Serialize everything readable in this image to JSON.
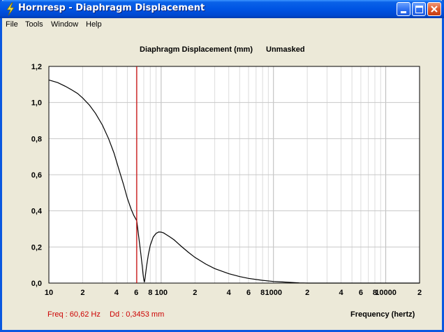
{
  "window": {
    "title": "Hornresp - Diaphragm Displacement",
    "icon": "lightning-icon"
  },
  "menu": {
    "items": [
      "File",
      "Tools",
      "Window",
      "Help"
    ]
  },
  "plot": {
    "title": "Diaphragm Displacement (mm)",
    "subtitle": "Unmasked",
    "x_axis_title": "Frequency (hertz)"
  },
  "readout": {
    "freq": "Freq : 60,62 Hz",
    "dd": "Dd : 0,3453 mm"
  },
  "chart_data": {
    "type": "line",
    "title": "Diaphragm Displacement (mm)",
    "xlabel": "Frequency (hertz)",
    "ylabel": "",
    "x_scale": "log",
    "xlim": [
      10,
      20000
    ],
    "ylim": [
      0,
      1.2
    ],
    "grid": true,
    "y_ticks": [
      "0,0",
      "0,2",
      "0,4",
      "0,6",
      "0,8",
      "1,0",
      "1,2"
    ],
    "x_tick_labels": [
      {
        "value": 10,
        "label": "10"
      },
      {
        "value": 20,
        "label": "2"
      },
      {
        "value": 40,
        "label": "4"
      },
      {
        "value": 60,
        "label": "6"
      },
      {
        "value": 80,
        "label": "8"
      },
      {
        "value": 100,
        "label": "100"
      },
      {
        "value": 200,
        "label": "2"
      },
      {
        "value": 400,
        "label": "4"
      },
      {
        "value": 600,
        "label": "6"
      },
      {
        "value": 800,
        "label": "8"
      },
      {
        "value": 1000,
        "label": "1000"
      },
      {
        "value": 2000,
        "label": "2"
      },
      {
        "value": 4000,
        "label": "4"
      },
      {
        "value": 6000,
        "label": "6"
      },
      {
        "value": 8000,
        "label": "8"
      },
      {
        "value": 10000,
        "label": "10000"
      },
      {
        "value": 20000,
        "label": "2"
      }
    ],
    "marker": {
      "x": 60.62,
      "color": "#cc0000"
    },
    "series": [
      {
        "color": "#000000",
        "x": [
          10,
          12,
          14,
          16,
          18,
          20,
          23,
          26,
          30,
          34,
          38,
          42,
          46,
          50,
          54,
          57,
          60.62,
          63,
          66,
          68,
          69,
          70,
          71,
          72,
          74,
          77,
          80,
          85,
          90,
          95,
          100,
          105,
          110,
          120,
          130,
          150,
          175,
          200,
          250,
          300,
          400,
          500,
          600,
          800,
          1000,
          1200,
          1500,
          1700,
          2000,
          5000,
          10000,
          20000
        ],
        "y": [
          1.125,
          1.11,
          1.09,
          1.07,
          1.05,
          1.025,
          0.985,
          0.94,
          0.875,
          0.8,
          0.72,
          0.63,
          0.55,
          0.47,
          0.41,
          0.375,
          0.3453,
          0.26,
          0.16,
          0.09,
          0.05,
          0.02,
          0.005,
          0.03,
          0.09,
          0.16,
          0.21,
          0.255,
          0.275,
          0.283,
          0.282,
          0.278,
          0.27,
          0.255,
          0.24,
          0.205,
          0.17,
          0.142,
          0.105,
          0.08,
          0.052,
          0.036,
          0.026,
          0.015,
          0.009,
          0.006,
          0.003,
          0.001,
          0.0,
          0.0,
          0.0,
          0.0
        ]
      }
    ]
  }
}
